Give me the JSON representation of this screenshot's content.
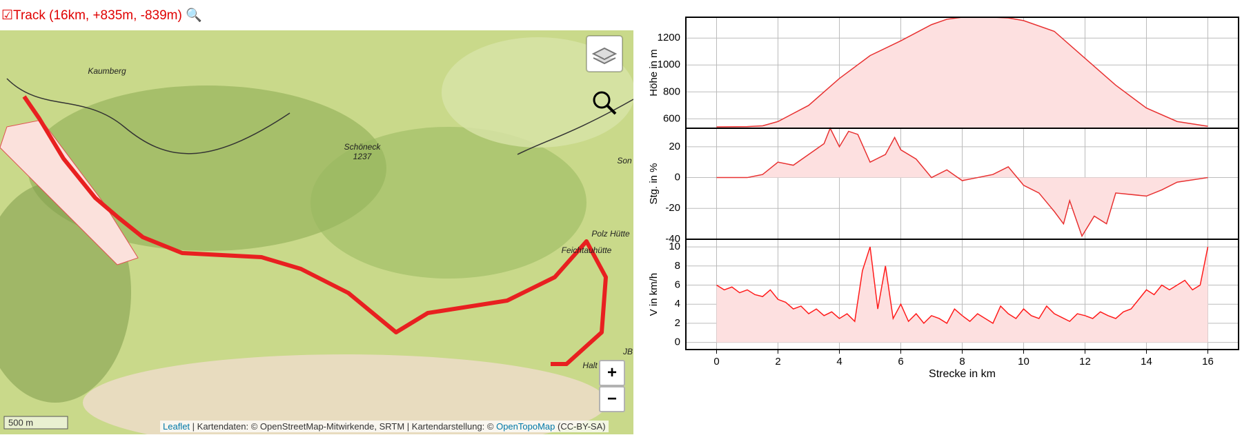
{
  "header": {
    "title": "Track (16km, +835m, -839m)"
  },
  "map": {
    "labels": [
      "Kaumberg",
      "Schöneck",
      "1237",
      "Polz Hütte",
      "Feichtauhütte",
      "Son",
      "Halt",
      "JB"
    ],
    "scale": "500 m",
    "zoom_in": "+",
    "zoom_out": "−",
    "attribution": {
      "leaflet": "Leaflet",
      "text": " | Kartendaten: © OpenStreetMap-Mitwirkende, SRTM | Kartendarstellung: © ",
      "opentopomap": "OpenTopoMap",
      "license": " (CC-BY-SA)"
    }
  },
  "chart_data": [
    {
      "type": "area",
      "ylabel": "Höhe in m",
      "color": "#e83030",
      "fill": "#fde0e0",
      "x": [
        0,
        1,
        1.5,
        2,
        3,
        4,
        5,
        6,
        7,
        7.5,
        8,
        9,
        9.5,
        10,
        11,
        12,
        13,
        14,
        15,
        16
      ],
      "values": [
        540,
        542,
        548,
        580,
        700,
        900,
        1070,
        1180,
        1300,
        1340,
        1355,
        1355,
        1350,
        1330,
        1250,
        1050,
        850,
        680,
        580,
        545
      ],
      "xlim": [
        -1,
        17
      ],
      "ylim": [
        530,
        1355
      ],
      "yticks": [
        600,
        800,
        1000,
        1200
      ],
      "xgrid": [
        0,
        2,
        4,
        6,
        8,
        10,
        12,
        14,
        16
      ],
      "grid": true
    },
    {
      "type": "area",
      "ylabel": "Stg. in %",
      "color": "#e83030",
      "fill": "#fde0e0",
      "x": [
        0,
        1,
        1.5,
        2,
        2.5,
        3,
        3.5,
        3.7,
        4,
        4.3,
        4.6,
        5,
        5.5,
        5.8,
        6,
        6.5,
        7,
        7.5,
        8,
        8.5,
        9,
        9.5,
        10,
        10.5,
        11,
        11.3,
        11.5,
        11.9,
        12.3,
        12.7,
        13,
        14,
        14.5,
        15,
        16
      ],
      "values": [
        0,
        0,
        2,
        10,
        8,
        15,
        22,
        32,
        20,
        30,
        28,
        10,
        15,
        26,
        18,
        12,
        0,
        5,
        -2,
        0,
        2,
        7,
        -5,
        -10,
        -22,
        -30,
        -15,
        -38,
        -25,
        -30,
        -10,
        -12,
        -8,
        -3,
        0
      ],
      "xlim": [
        -1,
        17
      ],
      "ylim": [
        -40,
        32
      ],
      "yticks": [
        -40,
        -20,
        0,
        20
      ],
      "xgrid": [
        0,
        2,
        4,
        6,
        8,
        10,
        12,
        14,
        16
      ],
      "grid": true
    },
    {
      "type": "area",
      "ylabel": "V in km/h",
      "xlabel": "Strecke in km",
      "color": "#ff1a1a",
      "fill": "#fde0e0",
      "x": [
        0,
        0.25,
        0.5,
        0.75,
        1,
        1.25,
        1.5,
        1.75,
        2,
        2.25,
        2.5,
        2.75,
        3,
        3.25,
        3.5,
        3.75,
        4,
        4.25,
        4.5,
        4.75,
        5,
        5.25,
        5.5,
        5.75,
        6,
        6.25,
        6.5,
        6.75,
        7,
        7.25,
        7.5,
        7.75,
        8,
        8.25,
        8.5,
        8.75,
        9,
        9.25,
        9.5,
        9.75,
        10,
        10.25,
        10.5,
        10.75,
        11,
        11.25,
        11.5,
        11.75,
        12,
        12.25,
        12.5,
        12.75,
        13,
        13.25,
        13.5,
        13.75,
        14,
        14.25,
        14.5,
        14.75,
        15,
        15.25,
        15.5,
        15.75,
        16
      ],
      "values": [
        6,
        5.5,
        5.8,
        5.2,
        5.5,
        5.0,
        4.8,
        5.5,
        4.5,
        4.2,
        3.5,
        3.8,
        3.0,
        3.5,
        2.8,
        3.2,
        2.5,
        3.0,
        2.2,
        7.5,
        10,
        3.5,
        8,
        2.5,
        4,
        2.2,
        3,
        2,
        2.8,
        2.5,
        2,
        3.5,
        2.8,
        2.2,
        3,
        2.5,
        2,
        3.8,
        3,
        2.5,
        3.5,
        2.8,
        2.5,
        3.8,
        3,
        2.6,
        2.2,
        3,
        2.8,
        2.5,
        3.2,
        2.8,
        2.5,
        3.2,
        3.5,
        4.5,
        5.5,
        5,
        6,
        5.5,
        6,
        6.5,
        5.5,
        6,
        10
      ],
      "xlim": [
        -1,
        17
      ],
      "ylim": [
        -0.75,
        10.8
      ],
      "yticks": [
        0,
        2,
        4,
        6,
        8,
        10
      ],
      "xticks": [
        0,
        2,
        4,
        6,
        8,
        10,
        12,
        14,
        16
      ],
      "grid": true
    }
  ]
}
